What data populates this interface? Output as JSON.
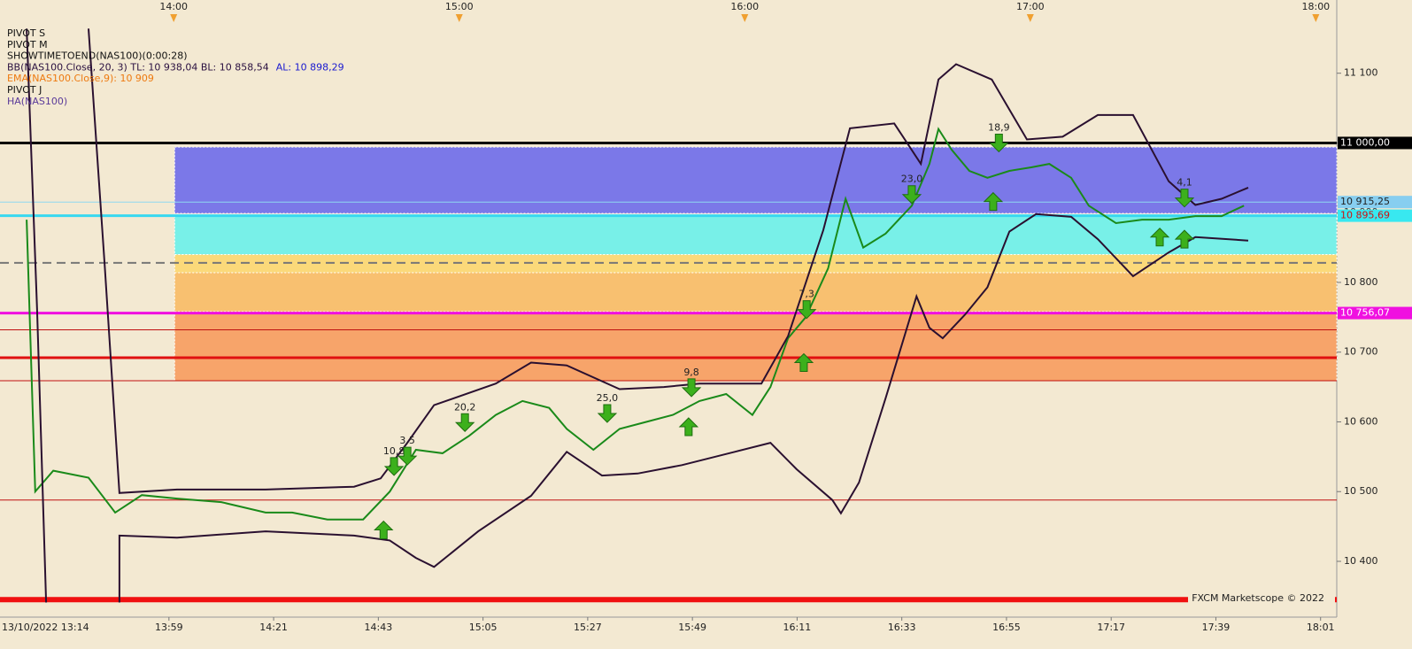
{
  "chart_data": {
    "type": "line",
    "xlim": [
      803.5,
      1084.4
    ],
    "ylim": [
      10320,
      11205
    ],
    "yticks": [
      {
        "value": 10400,
        "label": "10 400"
      },
      {
        "value": 10500,
        "label": "10 500"
      },
      {
        "value": 10600,
        "label": "10 600"
      },
      {
        "value": 10700,
        "label": "10 700"
      },
      {
        "value": 10800,
        "label": "10 800"
      },
      {
        "value": 10900,
        "label": "10 900"
      },
      {
        "value": 11000,
        "label": "11 000"
      },
      {
        "value": 11100,
        "label": "11 100"
      }
    ],
    "top_xticks": [
      {
        "value": 840,
        "label": "14:00"
      },
      {
        "value": 900,
        "label": "15:00"
      },
      {
        "value": 960,
        "label": "16:00"
      },
      {
        "value": 1020,
        "label": "17:00"
      },
      {
        "value": 1080,
        "label": "18:00"
      }
    ],
    "xticks": [
      {
        "value": 839,
        "label": "13:59"
      },
      {
        "value": 861,
        "label": "14:21"
      },
      {
        "value": 883,
        "label": "14:43"
      },
      {
        "value": 905,
        "label": "15:05"
      },
      {
        "value": 927,
        "label": "15:27"
      },
      {
        "value": 949,
        "label": "15:49"
      },
      {
        "value": 971,
        "label": "16:11"
      },
      {
        "value": 993,
        "label": "16:33"
      },
      {
        "value": 1015,
        "label": "16:55"
      },
      {
        "value": 1037,
        "label": "17:17"
      },
      {
        "value": 1059,
        "label": "17:39"
      },
      {
        "value": 1081,
        "label": "18:01"
      }
    ],
    "start_label": "13/10/2022 13:14",
    "watermark": "FXCM Marketscope © 2022",
    "indicators": [
      {
        "text": "PIVOT S",
        "color": "#111111"
      },
      {
        "text": "PIVOT M",
        "color": "#111111"
      },
      {
        "text": "SHOWTIMETOEND(NAS100)(0:00:28)",
        "color": "#111111"
      },
      {
        "text": "BB(NAS100.Close, 20, 3)  TL: 10 938,04   BL: 10 858,54",
        "color": "#2a1040",
        "extra": "AL: 10 898,29",
        "extra_color": "#1a1ad0"
      },
      {
        "text": "EMA(NAS100.Close,9): 10 909",
        "color": "#ee7a10"
      },
      {
        "text": "PIVOT J",
        "color": "#111111"
      },
      {
        "text": "HA(NAS100)",
        "color": "#5a3a9a"
      }
    ],
    "zones": [
      {
        "from": 10994,
        "to": 10899,
        "start": 840.2,
        "color": "#7b78e8"
      },
      {
        "from": 10897,
        "to": 10840,
        "start": 840.2,
        "color": "#78f0e8"
      },
      {
        "from": 10840,
        "to": 10814,
        "start": 840.2,
        "color": "#fbd97a"
      },
      {
        "from": 10814,
        "to": 10758,
        "start": 840.2,
        "color": "#f8c070"
      },
      {
        "from": 10758,
        "to": 10659,
        "start": 840.2,
        "color": "#f7a46a"
      }
    ],
    "levels": [
      {
        "value": 11000,
        "color": "#000000",
        "width": 3,
        "label": "11 000,00",
        "label_bg": "#000000",
        "label_color": "#ffffff"
      },
      {
        "value": 10915.25,
        "color": "#8fd8f0",
        "width": 1,
        "label": "10 915,25",
        "label_bg": "#87cef0",
        "label_color": "#222222"
      },
      {
        "value": 10895.69,
        "color": "#38d8f0",
        "width": 3,
        "label": "10 895,69",
        "label_bg": "#38e8f0",
        "label_color": "#d01010"
      },
      {
        "value": 10828,
        "color": "#777777",
        "width": 2,
        "dash": true
      },
      {
        "value": 10756.07,
        "color": "#f010e0",
        "width": 3,
        "label": "10 756,07",
        "label_bg": "#f010e0",
        "label_color": "#ffffff"
      },
      {
        "value": 10732,
        "color": "#c01010",
        "width": 1
      },
      {
        "value": 10692,
        "color": "#e01010",
        "width": 3
      },
      {
        "value": 10659,
        "color": "#c01010",
        "width": 1
      },
      {
        "value": 10488,
        "color": "#c01010",
        "width": 1
      },
      {
        "value": 10345,
        "color": "#f01010",
        "width": 6
      }
    ],
    "series": [
      {
        "color": "#1a8a1a",
        "width": 2,
        "x": [
          809.1,
          810.9,
          814.7,
          822.1,
          827.7,
          833.3,
          840.7,
          850.0,
          859.3,
          864.9,
          872.3,
          879.8,
          885.4,
          890.9,
          896.5,
          902.1,
          907.7,
          913.3,
          918.9,
          922.6,
          928.2,
          933.7,
          939.3,
          944.9,
          950.5,
          956.1,
          961.6,
          965.4,
          969.1,
          972.8,
          977.5,
          981.2,
          984.9,
          989.6,
          995.1,
          998.8,
          1000.7,
          1003.5,
          1007.2,
          1011.0,
          1015.6,
          1020.2,
          1024.0,
          1028.6,
          1032.3,
          1038.0,
          1043.5,
          1049.1,
          1054.7,
          1060.2,
          1064.9
        ],
        "values": [
          10890,
          10500,
          10530,
          10520,
          10470,
          10495,
          10490,
          10485,
          10470,
          10470,
          10460,
          10460,
          10500,
          10560,
          10555,
          10580,
          10610,
          10630,
          10620,
          10590,
          10560,
          10590,
          10600,
          10610,
          10630,
          10640,
          10610,
          10650,
          10720,
          10750,
          10820,
          10920,
          10850,
          10870,
          10910,
          10970,
          11020,
          10990,
          10960,
          10950,
          10960,
          10965,
          10970,
          10950,
          10910,
          10885,
          10890,
          10890,
          10895,
          10895,
          10910
        ]
      },
      {
        "color": "#2a1030",
        "width": 2,
        "x": [
          822.1,
          825.5,
          828.6,
          840.7,
          859.3,
          877.9,
          883.5,
          889.1,
          894.7,
          907.7,
          915.1,
          922.6,
          933.7,
          943.0,
          950.5,
          963.5,
          969.1,
          976.5,
          982.1,
          991.4,
          997.0,
          1000.7,
          1004.4,
          1011.9,
          1019.3,
          1026.8,
          1034.2,
          1041.6,
          1049.1,
          1054.7,
          1060.2,
          1065.8
        ],
        "values": [
          11164,
          10824,
          10498,
          10503,
          10503,
          10507,
          10519,
          10570,
          10624,
          10655,
          10685,
          10681,
          10647,
          10650,
          10655,
          10655,
          10723,
          10875,
          11021,
          11028,
          10970,
          11091,
          11113,
          11091,
          11005,
          11009,
          11040,
          11040,
          10945,
          10911,
          10920,
          10936
        ]
      },
      {
        "color": "#2a1030",
        "width": 2,
        "x": [
          809.1,
          811.3,
          813.2,
          null,
          828.6,
          828.6,
          840.7,
          859.3,
          877.9,
          885.4,
          890.9,
          894.7,
          904.0,
          915.1,
          922.6,
          930.0,
          937.5,
          946.8,
          957.9,
          965.4,
          970.9,
          978.4,
          980.2,
          984.0,
          989.6,
          996.1,
          998.8,
          1001.6,
          1006.3,
          1011.0,
          1015.6,
          1021.2,
          1028.6,
          1034.2,
          1041.6,
          1049.1,
          1054.7,
          1065.8
        ],
        "values": [
          11164,
          10761,
          10341,
          null,
          10341,
          10437,
          10434,
          10443,
          10437,
          10430,
          10405,
          10392,
          10443,
          10494,
          10557,
          10523,
          10526,
          10538,
          10557,
          10570,
          10532,
          10488,
          10469,
          10513,
          10634,
          10780,
          10735,
          10720,
          10754,
          10793,
          10873,
          10898,
          10894,
          10862,
          10809,
          10843,
          10865,
          10860
        ]
      }
    ],
    "signals": [
      {
        "x": 886.3,
        "price": 10536,
        "dir": "down",
        "label": "10,8"
      },
      {
        "x": 889.1,
        "price": 10551,
        "dir": "down",
        "label": "3,5"
      },
      {
        "x": 901.2,
        "price": 10599,
        "dir": "down",
        "label": "20,2"
      },
      {
        "x": 931.1,
        "price": 10612,
        "dir": "down",
        "label": "25,0"
      },
      {
        "x": 948.8,
        "price": 10649,
        "dir": "down",
        "label": "9,8"
      },
      {
        "x": 973.0,
        "price": 10761,
        "dir": "down",
        "label": "7,3"
      },
      {
        "x": 995.1,
        "price": 10926,
        "dir": "down",
        "label": "23,0"
      },
      {
        "x": 1013.4,
        "price": 11000,
        "dir": "down",
        "label": "18,9"
      },
      {
        "x": 1052.4,
        "price": 10921,
        "dir": "down",
        "label": "4,1"
      },
      {
        "x": 884.1,
        "price": 10445,
        "dir": "up"
      },
      {
        "x": 948.2,
        "price": 10593,
        "dir": "up"
      },
      {
        "x": 972.4,
        "price": 10685,
        "dir": "up"
      },
      {
        "x": 1012.2,
        "price": 10916,
        "dir": "up"
      },
      {
        "x": 1047.2,
        "price": 10865,
        "dir": "up"
      },
      {
        "x": 1052.4,
        "price": 10862,
        "dir": "up"
      }
    ]
  }
}
